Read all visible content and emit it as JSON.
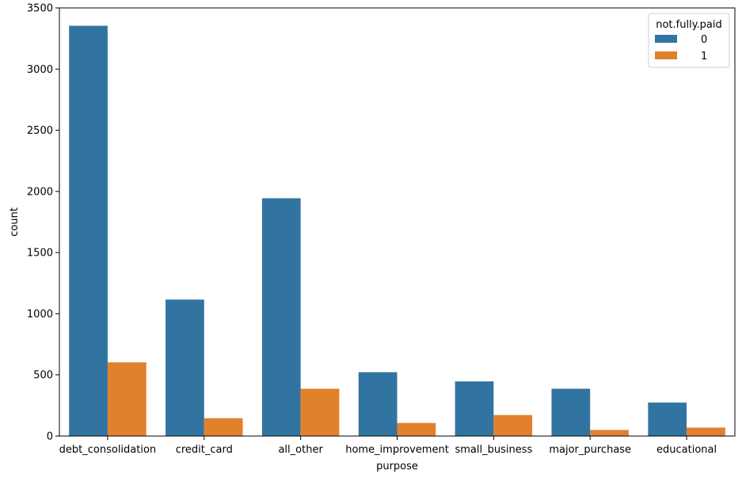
{
  "chart_data": {
    "type": "bar",
    "categories": [
      "debt_consolidation",
      "credit_card",
      "all_other",
      "home_improvement",
      "small_business",
      "major_purchase",
      "educational"
    ],
    "series": [
      {
        "name": "0",
        "values": [
          3354,
          1116,
          1944,
          522,
          447,
          387,
          274
        ],
        "color": "#3274a1"
      },
      {
        "name": "1",
        "values": [
          603,
          146,
          387,
          107,
          172,
          50,
          69
        ],
        "color": "#e1812c"
      }
    ],
    "xlabel": "purpose",
    "ylabel": "count",
    "ylim": [
      0,
      3500
    ],
    "yticks": [
      0,
      500,
      1000,
      1500,
      2000,
      2500,
      3000,
      3500
    ],
    "legend": {
      "title": "not.fully.paid",
      "position": "top-right"
    },
    "grid": false
  }
}
